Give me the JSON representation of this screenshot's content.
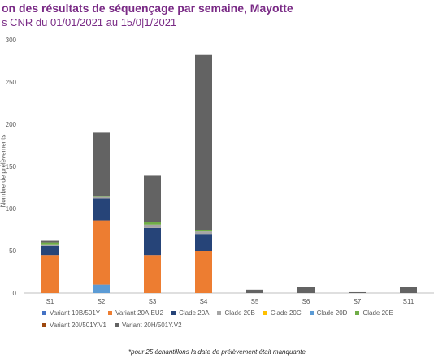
{
  "header": {
    "title": "on des résultats de séquençage par semaine, Mayotte",
    "subtitle": "s CNR du 01/01/2021 au 15/0|1/2021"
  },
  "footnote": "*pour 25 échantillons la date de prélèvement était manquante",
  "chart_data": {
    "type": "bar",
    "stacked": true,
    "ylabel": "Nombre de prélèvements",
    "ylim": [
      0,
      300
    ],
    "yticks": [
      "0",
      "50",
      "100",
      "150",
      "200",
      "250",
      "300"
    ],
    "categories": [
      "S1",
      "S2",
      "S3",
      "S4",
      "S5",
      "S6",
      "S7",
      "S11"
    ],
    "grid": false,
    "legend_position": "bottom",
    "series": [
      {
        "name": "Variant 19B/501Y",
        "color": "#4472c4",
        "values": [
          0,
          0,
          0,
          0,
          0,
          0,
          0,
          0
        ]
      },
      {
        "name": "Variant 20A.EU2",
        "color": "#ed7d31",
        "values": [
          45,
          76,
          45,
          50,
          0,
          0,
          0,
          0
        ]
      },
      {
        "name": "Clade 20A",
        "color": "#264478",
        "values": [
          11,
          26,
          32,
          20,
          0,
          0,
          0,
          0
        ]
      },
      {
        "name": "Clade 20B",
        "color": "#a5a5a5",
        "values": [
          1,
          2,
          4,
          3,
          0,
          0,
          0,
          0
        ]
      },
      {
        "name": "Clade 20C",
        "color": "#ffc000",
        "values": [
          0,
          0,
          0,
          0,
          0,
          0,
          0,
          0
        ]
      },
      {
        "name": "Clade 20D",
        "color": "#5b9bd5",
        "values": [
          0,
          10,
          0,
          0,
          0,
          0,
          0,
          0
        ]
      },
      {
        "name": "Clade 20E",
        "color": "#70ad47",
        "values": [
          3,
          1,
          3,
          2,
          0,
          0,
          0,
          0
        ]
      },
      {
        "name": "Variant 20I/501Y.V1",
        "color": "#9e480e",
        "values": [
          0,
          0,
          0,
          0,
          0,
          0,
          0,
          0
        ]
      },
      {
        "name": "Variant 20H/501Y.V2",
        "color": "#636363",
        "values": [
          2,
          75,
          55,
          207,
          4,
          7,
          1,
          7
        ]
      }
    ],
    "stack_order": [
      "Clade 20D",
      "Variant 20A.EU2",
      "Clade 20A",
      "Clade 20B",
      "Clade 20E",
      "Variant 20H/501Y.V2"
    ]
  }
}
